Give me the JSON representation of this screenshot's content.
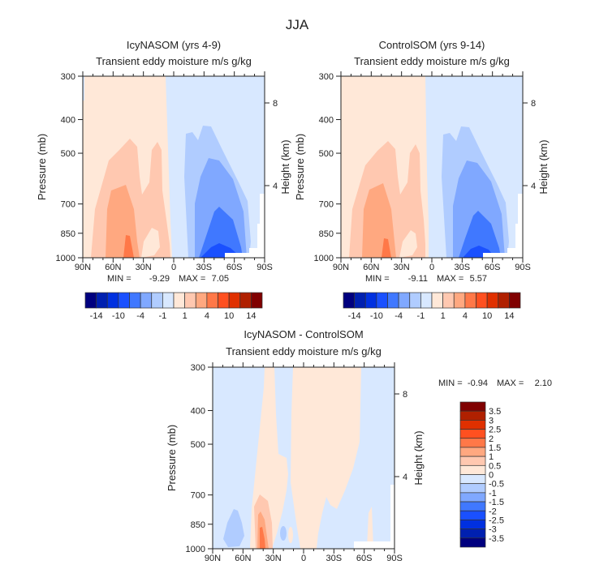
{
  "chart_data": {
    "type": "contour",
    "title": "JJA",
    "colors": {
      "diverging": [
        "#00007f",
        "#0020b0",
        "#0030e0",
        "#1a50ff",
        "#4078ff",
        "#80a8ff",
        "#b0ccff",
        "#d8e8ff",
        "#ffe8d8",
        "#ffc8b0",
        "#ffa880",
        "#ff7848",
        "#ff5020",
        "#e03000",
        "#b02000",
        "#800000"
      ],
      "missing": "#ffffff"
    },
    "xticks": [
      "90N",
      "60N",
      "30N",
      "0",
      "30S",
      "60S",
      "90S"
    ],
    "yticks_left": [
      300,
      400,
      500,
      700,
      850,
      1000
    ],
    "yticks_right": [
      8,
      4
    ],
    "ylabel": "Pressure (mb)",
    "ylabel_right": "Height (km)",
    "panels": [
      {
        "title": "IcyNASOM (yrs 4-9)",
        "subtitle": "Transient eddy moisture m/s g/kg",
        "min_label": "MIN =",
        "min": "-9.29",
        "max_label": "MAX =",
        "max": "7.05",
        "colorbar_labels": [
          "-14",
          "-10",
          "-4",
          "-1",
          "1",
          "4",
          "10",
          "14"
        ]
      },
      {
        "title": "ControlSOM (yrs 9-14)",
        "subtitle": "Transient eddy moisture m/s g/kg",
        "min_label": "MIN =",
        "min": "-9.11",
        "max_label": "MAX =",
        "max": "5.57",
        "colorbar_labels": [
          "-14",
          "-10",
          "-4",
          "-1",
          "1",
          "4",
          "10",
          "14"
        ]
      },
      {
        "title": "IcyNASOM - ControlSOM",
        "subtitle": "Transient eddy moisture m/s g/kg",
        "min_label": "MIN =",
        "min": "-0.94",
        "max_label": "MAX =",
        "max": "2.10",
        "colorbar_labels": [
          "3.5",
          "3",
          "2.5",
          "2",
          "1.5",
          "1",
          "0.5",
          "0",
          "-0.5",
          "-1",
          "-1.5",
          "-2",
          "-2.5",
          "-3",
          "-3.5"
        ]
      }
    ]
  }
}
